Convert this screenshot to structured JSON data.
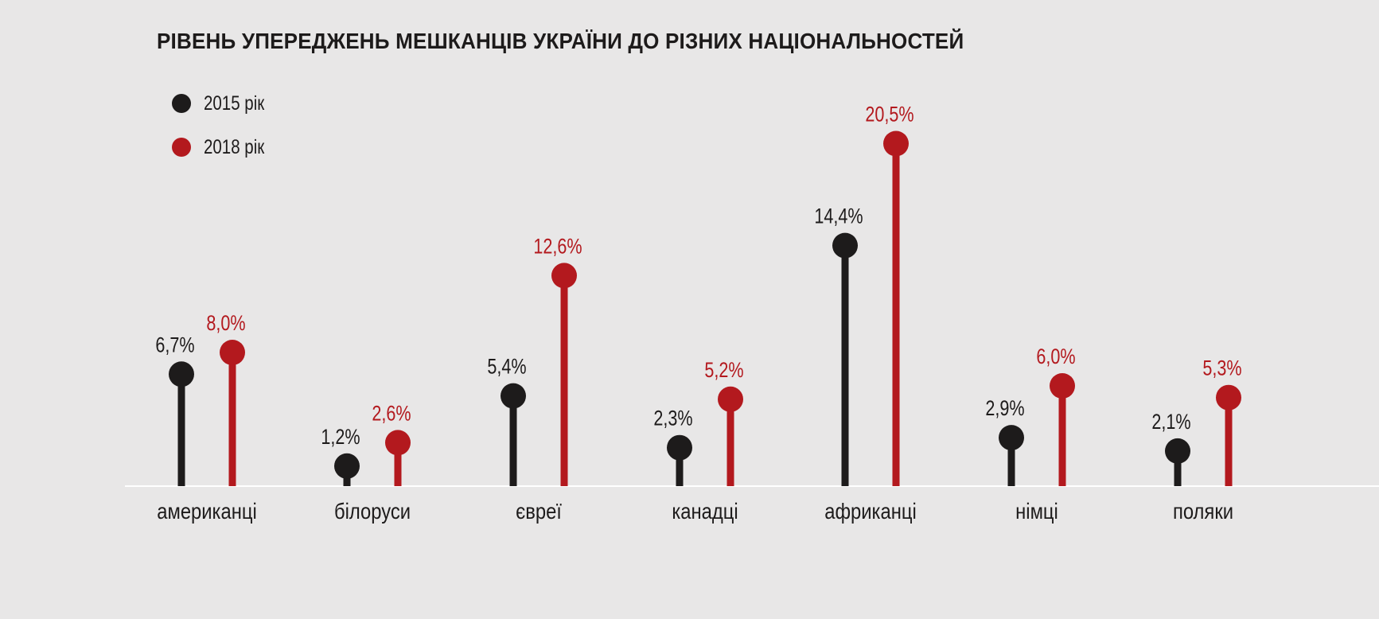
{
  "chart_data": {
    "type": "lollipop",
    "title": "РІВЕНЬ УПЕРЕДЖЕНЬ МЕШКАНЦІВ УКРАЇНИ ДО РІЗНИХ НАЦІОНАЛЬНОСТЕЙ",
    "categories": [
      "американці",
      "білоруси",
      "євреї",
      "канадці",
      "африканці",
      "німці",
      "поляки"
    ],
    "series": [
      {
        "name": "2015 рік",
        "color": "#1d1b1b",
        "values": [
          6.7,
          1.2,
          5.4,
          2.3,
          14.4,
          2.9,
          2.1
        ],
        "labels": [
          "6,7%",
          "1,2%",
          "5,4%",
          "2,3%",
          "14,4%",
          "2,9%",
          "2,1%"
        ]
      },
      {
        "name": "2018 рік",
        "color": "#b3191e",
        "values": [
          8.0,
          2.6,
          12.6,
          5.2,
          20.5,
          6.0,
          5.3
        ],
        "labels": [
          "8,0%",
          "2,6%",
          "12,6%",
          "5,2%",
          "20,5%",
          "6,0%",
          "5,3%"
        ]
      }
    ],
    "legend_position": "top-left",
    "grid": false,
    "axis_line_color": "#ffffff"
  }
}
